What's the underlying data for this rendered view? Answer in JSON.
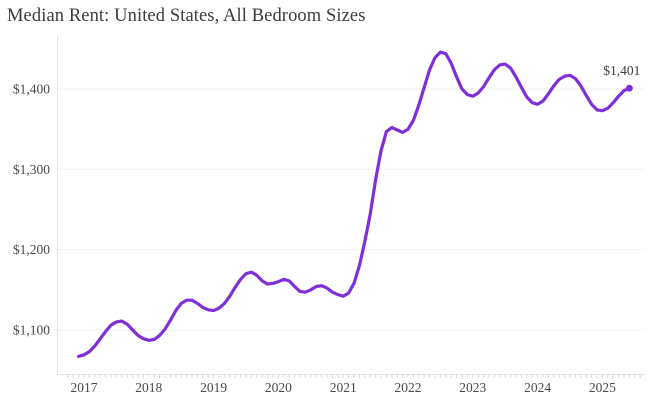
{
  "page": {
    "title": "Median Rent: United States, All Bedroom Sizes"
  },
  "chart_data": {
    "type": "line",
    "title": "Median Rent: United States, All Bedroom Sizes",
    "frequency": "monthly",
    "start": {
      "year": 2016,
      "month": 12
    },
    "end": {
      "year": 2025,
      "month": 6
    },
    "series": [
      {
        "name": "Median rent (USD)",
        "color": "#7E2FD8",
        "values": [
          1067,
          1069,
          1073,
          1080,
          1089,
          1098,
          1106,
          1110,
          1111,
          1107,
          1100,
          1093,
          1089,
          1087,
          1088,
          1093,
          1101,
          1112,
          1124,
          1133,
          1137,
          1137,
          1133,
          1128,
          1125,
          1124,
          1127,
          1133,
          1142,
          1153,
          1163,
          1170,
          1172,
          1168,
          1161,
          1157,
          1158,
          1160,
          1163,
          1161,
          1154,
          1148,
          1147,
          1150,
          1154,
          1155,
          1152,
          1147,
          1144,
          1142,
          1146,
          1158,
          1180,
          1210,
          1244,
          1287,
          1323,
          1347,
          1352,
          1349,
          1346,
          1350,
          1361,
          1380,
          1402,
          1424,
          1439,
          1446,
          1444,
          1432,
          1415,
          1400,
          1393,
          1391,
          1395,
          1403,
          1414,
          1424,
          1430,
          1431,
          1426,
          1415,
          1402,
          1390,
          1383,
          1381,
          1385,
          1394,
          1404,
          1412,
          1416,
          1417,
          1413,
          1404,
          1392,
          1381,
          1374,
          1373,
          1376,
          1383,
          1391,
          1398,
          1401
        ]
      }
    ],
    "last_value": 1401,
    "end_label": "$1,401",
    "x_ticks": [
      2017,
      2018,
      2019,
      2020,
      2021,
      2022,
      2023,
      2024,
      2025
    ],
    "y_ticks": [
      {
        "value": 1100,
        "label": "$1,100"
      },
      {
        "value": 1200,
        "label": "$1,200"
      },
      {
        "value": 1300,
        "label": "$1,300"
      },
      {
        "value": 1400,
        "label": "$1,400"
      }
    ],
    "ylim": [
      1050,
      1465
    ],
    "xlim": [
      2016.75,
      2025.65
    ],
    "grid": "horizontal",
    "legend": "none",
    "line_color": "#7E2FD8",
    "grid_color": "#f2f2f5",
    "axis_color": "#e3e3e7",
    "tick_color": "#dadade",
    "label_color": "#4a4a4e",
    "title_color": "#3b3b3b"
  }
}
